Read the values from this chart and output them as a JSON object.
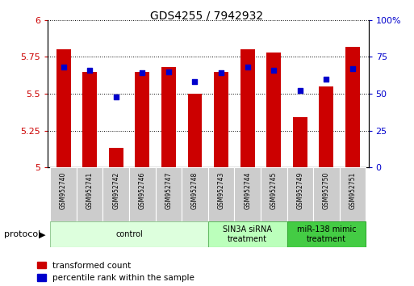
{
  "title": "GDS4255 / 7942932",
  "samples": [
    "GSM952740",
    "GSM952741",
    "GSM952742",
    "GSM952746",
    "GSM952747",
    "GSM952748",
    "GSM952743",
    "GSM952744",
    "GSM952745",
    "GSM952749",
    "GSM952750",
    "GSM952751"
  ],
  "bar_values": [
    5.8,
    5.65,
    5.13,
    5.65,
    5.68,
    5.5,
    5.65,
    5.8,
    5.78,
    5.34,
    5.55,
    5.82
  ],
  "dot_values": [
    68,
    66,
    48,
    64,
    65,
    58,
    64,
    68,
    66,
    52,
    60,
    67
  ],
  "bar_color": "#cc0000",
  "dot_color": "#0000cc",
  "ylim_left": [
    5.0,
    6.0
  ],
  "ylim_right": [
    0,
    100
  ],
  "yticks_left": [
    5.0,
    5.25,
    5.5,
    5.75,
    6.0
  ],
  "ytick_labels_left": [
    "5",
    "5.25",
    "5.5",
    "5.75",
    "6"
  ],
  "yticks_right": [
    0,
    25,
    50,
    75,
    100
  ],
  "ytick_labels_right": [
    "0",
    "25",
    "50",
    "75",
    "100%"
  ],
  "groups": [
    {
      "label": "control",
      "start": 0,
      "end": 6,
      "color": "#ddffdd",
      "edge_color": "#99cc99"
    },
    {
      "label": "SIN3A siRNA\ntreatment",
      "start": 6,
      "end": 9,
      "color": "#bbffbb",
      "edge_color": "#66bb66"
    },
    {
      "label": "miR-138 mimic\ntreatment",
      "start": 9,
      "end": 12,
      "color": "#44cc44",
      "edge_color": "#33aa33"
    }
  ],
  "legend_items": [
    {
      "label": "transformed count",
      "color": "#cc0000"
    },
    {
      "label": "percentile rank within the sample",
      "color": "#0000cc"
    }
  ],
  "protocol_label": "protocol",
  "bar_width": 0.55
}
